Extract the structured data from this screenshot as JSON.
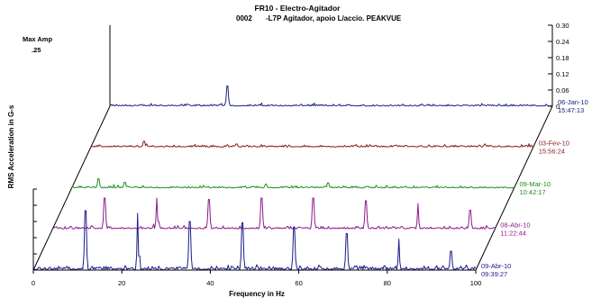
{
  "chart_data": {
    "type": "waterfall-spectrum",
    "title": "FR10 - Electro-Agitador",
    "subtitle_point": "0002",
    "subtitle_desc": "-L7P   Agitador, apoio L/accio. PEAKVUE",
    "max_amp_label": "Max Amp",
    "max_amp_value": ".25",
    "xlabel": "Frequency in Hz",
    "ylabel": "RMS Acceleration in G-s",
    "xlim": [
      0,
      100
    ],
    "x_ticks": [
      "0",
      "20",
      "40",
      "60",
      "80",
      "100"
    ],
    "z_ticks": [
      "0",
      "0.06",
      "0.12",
      "0.18",
      "0.24",
      "0.30"
    ],
    "zlim": [
      0,
      0.3
    ],
    "series": [
      {
        "name": "06-Jan-10",
        "time": "15:47:13",
        "color": "#1a237e",
        "noise": 0.003,
        "peaks": [
          [
            26.5,
            0.075
          ]
        ]
      },
      {
        "name": "03-Fev-10",
        "time": "15:56:24",
        "color": "#8b1a1a",
        "noise": 0.003,
        "peaks": [
          [
            12,
            0.022
          ],
          [
            33,
            0.012
          ],
          [
            60,
            0.01
          ],
          [
            80,
            0.01
          ]
        ]
      },
      {
        "name": "09-Mar-10",
        "time": "10:42:17",
        "color": "#1e8c1e",
        "noise": 0.003,
        "peaks": [
          [
            6,
            0.035
          ],
          [
            12,
            0.022
          ],
          [
            44,
            0.015
          ],
          [
            58,
            0.02
          ]
        ]
      },
      {
        "name": "08-Abr-10",
        "time": "11:22:44",
        "color": "#8b1a8b",
        "noise": 0.004,
        "peaks": [
          [
            11.8,
            0.115
          ],
          [
            23.6,
            0.115
          ],
          [
            35.4,
            0.11
          ],
          [
            47.2,
            0.115
          ],
          [
            59,
            0.115
          ],
          [
            70.8,
            0.105
          ],
          [
            82.6,
            0.095
          ],
          [
            94.4,
            0.07
          ]
        ]
      },
      {
        "name": "09-Abr-10",
        "time": "09:39:27",
        "color": "#1a1a8b",
        "noise": 0.006,
        "peaks": [
          [
            11.8,
            0.22
          ],
          [
            23.6,
            0.21
          ],
          [
            35.4,
            0.18
          ],
          [
            47.2,
            0.175
          ],
          [
            59,
            0.16
          ],
          [
            70.8,
            0.135
          ],
          [
            82.6,
            0.115
          ],
          [
            94.4,
            0.07
          ]
        ]
      }
    ]
  }
}
